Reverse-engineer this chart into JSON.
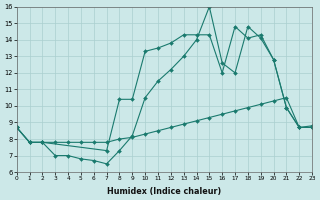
{
  "xlabel": "Humidex (Indice chaleur)",
  "background_color": "#cce8e8",
  "grid_color": "#aacfcf",
  "line_color": "#1a7a6e",
  "xlim": [
    0,
    23
  ],
  "ylim": [
    6,
    16
  ],
  "xticks": [
    0,
    1,
    2,
    3,
    4,
    5,
    6,
    7,
    8,
    9,
    10,
    11,
    12,
    13,
    14,
    15,
    16,
    17,
    18,
    19,
    20,
    21,
    22,
    23
  ],
  "yticks": [
    6,
    7,
    8,
    9,
    10,
    11,
    12,
    13,
    14,
    15,
    16
  ],
  "series1_x": [
    0,
    1,
    2,
    3,
    4,
    5,
    6,
    7,
    8,
    9,
    10,
    11,
    12,
    13,
    14,
    15,
    16,
    17,
    18,
    19,
    20,
    21,
    22,
    23
  ],
  "series1_y": [
    8.7,
    7.8,
    7.8,
    7.8,
    7.8,
    7.8,
    7.8,
    7.8,
    8.0,
    8.1,
    8.3,
    8.5,
    8.7,
    8.9,
    9.1,
    9.3,
    9.5,
    9.7,
    9.9,
    10.1,
    10.3,
    10.5,
    8.7,
    8.8
  ],
  "series2_x": [
    0,
    1,
    2,
    3,
    4,
    5,
    6,
    7,
    8,
    9,
    10,
    11,
    12,
    13,
    14,
    15,
    16,
    17,
    18,
    19,
    20,
    21,
    22,
    23
  ],
  "series2_y": [
    8.7,
    7.8,
    7.8,
    7.0,
    7.0,
    6.8,
    6.7,
    6.5,
    7.3,
    8.2,
    10.5,
    11.5,
    12.2,
    13.0,
    14.0,
    16.0,
    12.6,
    12.0,
    14.8,
    14.1,
    12.8,
    9.9,
    8.7,
    8.7
  ],
  "series3_x": [
    0,
    1,
    2,
    7,
    8,
    9,
    10,
    11,
    12,
    13,
    14,
    15,
    16,
    17,
    18,
    19,
    20,
    21,
    22,
    23
  ],
  "series3_y": [
    8.7,
    7.8,
    7.8,
    7.3,
    10.4,
    10.4,
    13.3,
    13.5,
    13.8,
    14.3,
    14.3,
    14.3,
    12.0,
    14.8,
    14.1,
    14.3,
    12.8,
    9.9,
    8.7,
    8.7
  ]
}
